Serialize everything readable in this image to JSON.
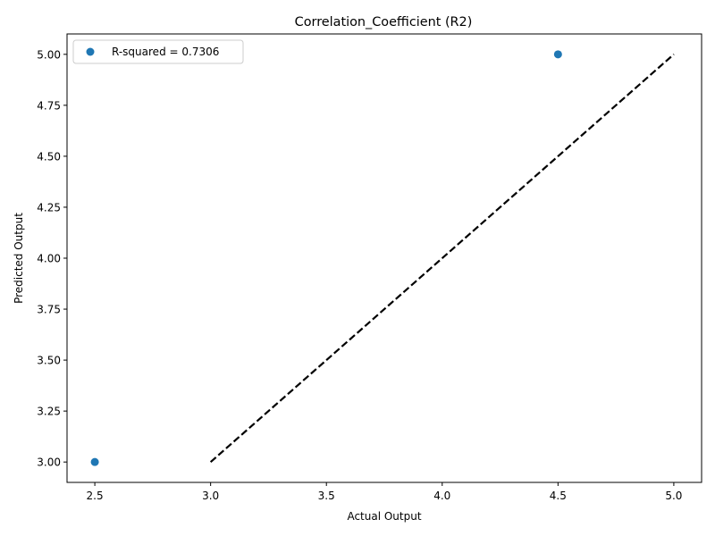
{
  "chart_data": {
    "type": "scatter",
    "title": "Correlation_Coefficient (R2)",
    "xlabel": "Actual Output",
    "ylabel": "Predicted Output",
    "xlim": [
      2.38,
      5.12
    ],
    "ylim": [
      2.9,
      5.1
    ],
    "x_ticks": [
      2.5,
      3.0,
      3.5,
      4.0,
      4.5,
      5.0
    ],
    "x_tick_labels": [
      "2.5",
      "3.0",
      "3.5",
      "4.0",
      "4.5",
      "5.0"
    ],
    "y_ticks": [
      3.0,
      3.25,
      3.5,
      3.75,
      4.0,
      4.25,
      4.5,
      4.75,
      5.0
    ],
    "y_tick_labels": [
      "3.00",
      "3.25",
      "3.50",
      "3.75",
      "4.00",
      "4.25",
      "4.50",
      "4.75",
      "5.00"
    ],
    "series": [
      {
        "name": "R-squared = 0.7306",
        "color": "#1f77b4",
        "points": [
          {
            "x": 2.5,
            "y": 3.0
          },
          {
            "x": 4.5,
            "y": 5.0
          }
        ]
      }
    ],
    "reference_line": {
      "style": "dashed",
      "color": "#000000",
      "x": [
        3.0,
        5.0
      ],
      "y": [
        3.0,
        5.0
      ]
    },
    "grid": false,
    "legend_position": "top-left"
  }
}
